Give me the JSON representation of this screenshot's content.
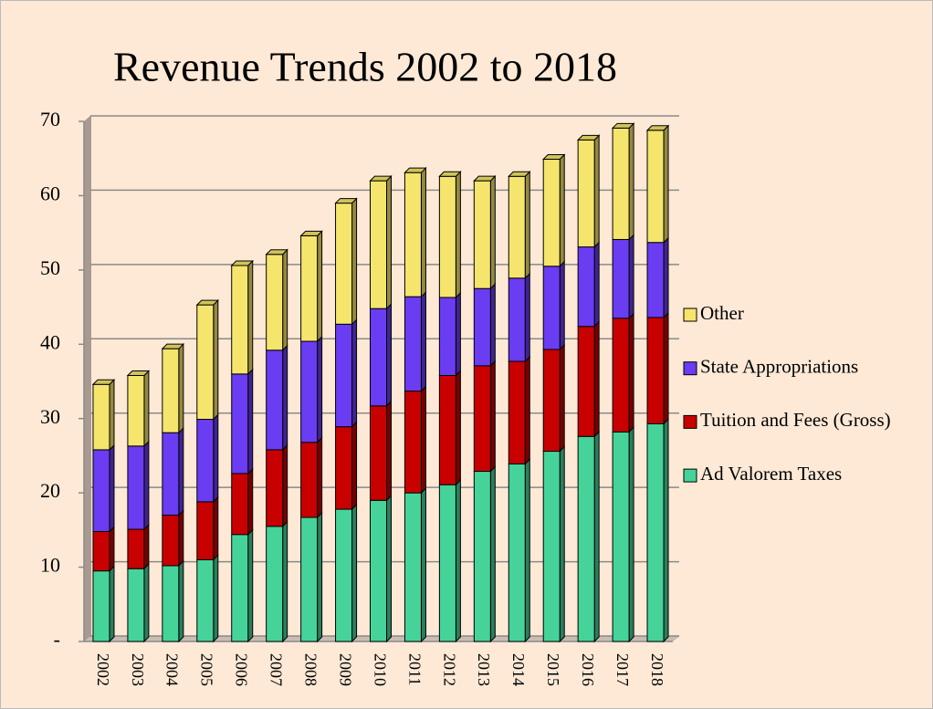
{
  "chart_data": {
    "type": "bar",
    "stacked": true,
    "title": "Revenue Trends 2002 to 2018",
    "categories": [
      "2002",
      "2003",
      "2004",
      "2005",
      "2006",
      "2007",
      "2008",
      "2009",
      "2010",
      "2011",
      "2012",
      "2013",
      "2014",
      "2015",
      "2016",
      "2017",
      "2018"
    ],
    "series": [
      {
        "name": "Ad Valorem Taxes",
        "color": "#46d39a",
        "values": [
          9.5,
          9.8,
          10.2,
          11,
          14.4,
          15.5,
          16.7,
          17.8,
          19,
          20,
          21.1,
          22.9,
          23.9,
          25.6,
          27.6,
          28.2,
          29.3
        ]
      },
      {
        "name": "Tuition and Fees (Gross)",
        "color": "#c80000",
        "values": [
          5.3,
          5.3,
          6.8,
          7.8,
          8.2,
          10.3,
          10.1,
          11.1,
          12.7,
          13.7,
          14.7,
          14.2,
          13.8,
          13.7,
          14.8,
          15.3,
          14.3
        ]
      },
      {
        "name": "State Appropriations",
        "color": "#6a3cf2",
        "values": [
          11,
          11.2,
          11.1,
          11.1,
          13.4,
          13.4,
          13.6,
          13.8,
          13.1,
          12.7,
          10.5,
          10.4,
          11.2,
          11.2,
          10.7,
          10.6,
          10.1
        ]
      },
      {
        "name": "Other",
        "color": "#f6e56c",
        "values": [
          8.8,
          9.5,
          11.3,
          15.4,
          14.6,
          12.9,
          14.2,
          16.3,
          17.2,
          16.7,
          16.3,
          14.5,
          13.7,
          14.4,
          14.4,
          15,
          15.1
        ]
      }
    ],
    "ylim": [
      0,
      70
    ],
    "yticks": [
      {
        "value": 0,
        "label": "-"
      },
      10,
      20,
      30,
      40,
      50,
      60,
      70
    ],
    "grid": true,
    "legend": "right"
  }
}
